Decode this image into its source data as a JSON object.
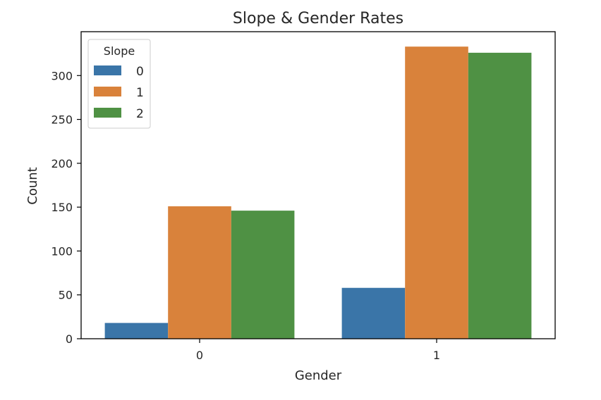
{
  "chart_data": {
    "type": "bar",
    "title": "Slope & Gender Rates",
    "xlabel": "Gender",
    "ylabel": "Count",
    "categories": [
      "0",
      "1"
    ],
    "series": [
      {
        "name": "0",
        "color": "#3a75a8",
        "values": [
          18,
          58
        ]
      },
      {
        "name": "1",
        "color": "#d9823b",
        "values": [
          151,
          333
        ]
      },
      {
        "name": "2",
        "color": "#4f9144",
        "values": [
          146,
          326
        ]
      }
    ],
    "ylim": [
      0,
      350
    ],
    "yticks": [
      0,
      50,
      100,
      150,
      200,
      250,
      300
    ],
    "legend": {
      "title": "Slope",
      "position": "top-left"
    },
    "grid": false
  }
}
